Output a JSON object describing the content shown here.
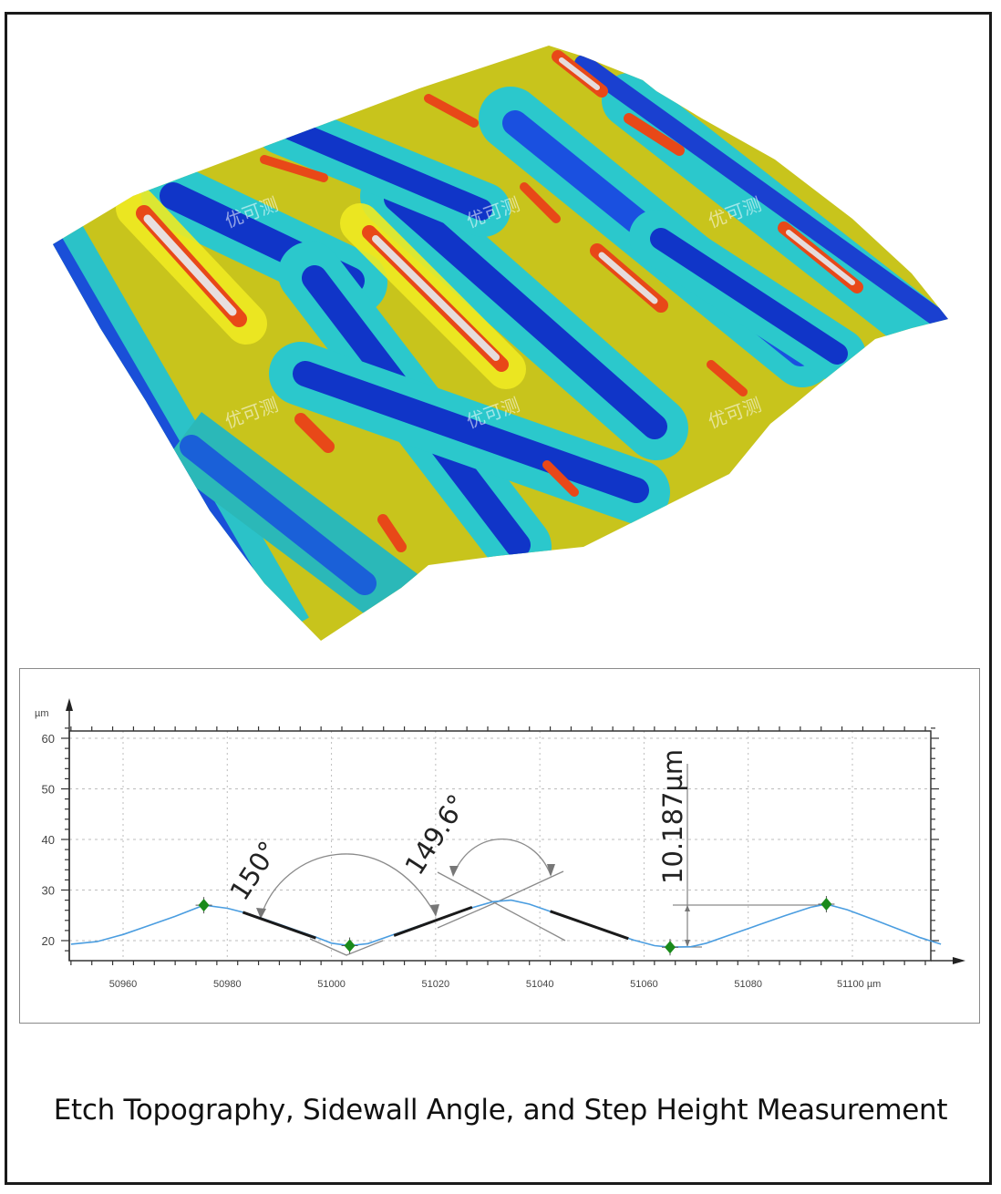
{
  "figure": {
    "caption": "Etch Topography, Sidewall Angle, and Step Height Measurement",
    "surface_view": {
      "description": "3D false-color surface topography of etched trenches",
      "watermark_text": "优可测",
      "watermark_count": 6,
      "colormap": [
        "#1030c8",
        "#1a55e0",
        "#20c8d0",
        "#3ad0a0",
        "#b8c81e",
        "#e8e020",
        "#f06018",
        "#e8e0e0"
      ]
    }
  },
  "chart_data": {
    "type": "line",
    "title": "",
    "xlabel": "µm",
    "ylabel": "µm",
    "xlim": [
      50950,
      51117
    ],
    "ylim": [
      15,
      62
    ],
    "x_ticks": [
      50960,
      50980,
      51000,
      51020,
      51040,
      51060,
      51080,
      51100
    ],
    "x_tick_labels": [
      "50960",
      "50980",
      "51000",
      "51020",
      "51040",
      "51060",
      "51080",
      "51100 µm"
    ],
    "y_ticks": [
      20,
      30,
      40,
      50,
      60
    ],
    "y_tick_labels": [
      "20",
      "30",
      "40",
      "50",
      "60"
    ],
    "y_unit_label": "µm",
    "grid": true,
    "series": [
      {
        "name": "profile",
        "color": "#4a9de0",
        "x": [
          50950,
          50955,
          50960,
          50965,
          50970,
          50975.5,
          50980,
          50983,
          50987,
          50992,
          50997,
          51000,
          51003.5,
          51007,
          51012,
          51017,
          51022,
          51027,
          51031,
          51034.5,
          51038,
          51043,
          51048,
          51053,
          51058,
          51062,
          51065,
          51069,
          51072,
          51077,
          51082,
          51087,
          51092,
          51095,
          51099,
          51104,
          51109,
          51113,
          51117
        ],
        "values": [
          19.3,
          19.8,
          21.2,
          23.0,
          24.8,
          27.0,
          26.4,
          25.6,
          24.3,
          22.5,
          20.7,
          19.5,
          19.0,
          19.4,
          21.2,
          23.0,
          24.8,
          26.5,
          27.7,
          28.0,
          27.2,
          25.4,
          23.6,
          21.8,
          20.1,
          19.0,
          18.7,
          18.8,
          19.5,
          21.3,
          23.1,
          24.9,
          26.6,
          27.2,
          26.1,
          24.2,
          22.2,
          20.6,
          19.3
        ]
      }
    ],
    "markers": [
      {
        "x": 50975.5,
        "y": 27.0,
        "color": "#1a8a1a",
        "shape": "diamond"
      },
      {
        "x": 51003.5,
        "y": 19.0,
        "color": "#1a8a1a",
        "shape": "diamond"
      },
      {
        "x": 51065,
        "y": 18.7,
        "color": "#1a8a1a",
        "shape": "diamond"
      },
      {
        "x": 51095,
        "y": 27.2,
        "color": "#1a8a1a",
        "shape": "diamond"
      }
    ],
    "fit_segments": [
      {
        "x": [
          50983,
          50997
        ],
        "y": [
          25.6,
          20.5
        ]
      },
      {
        "x": [
          51012,
          51027
        ],
        "y": [
          21.0,
          26.6
        ]
      },
      {
        "x": [
          51042,
          51057
        ],
        "y": [
          25.8,
          20.4
        ]
      }
    ],
    "annotations": [
      {
        "text": "150°",
        "type": "sidewall_angle"
      },
      {
        "text": "149.6°",
        "type": "sidewall_angle"
      },
      {
        "text": "10.187µm",
        "type": "step_height"
      }
    ]
  }
}
